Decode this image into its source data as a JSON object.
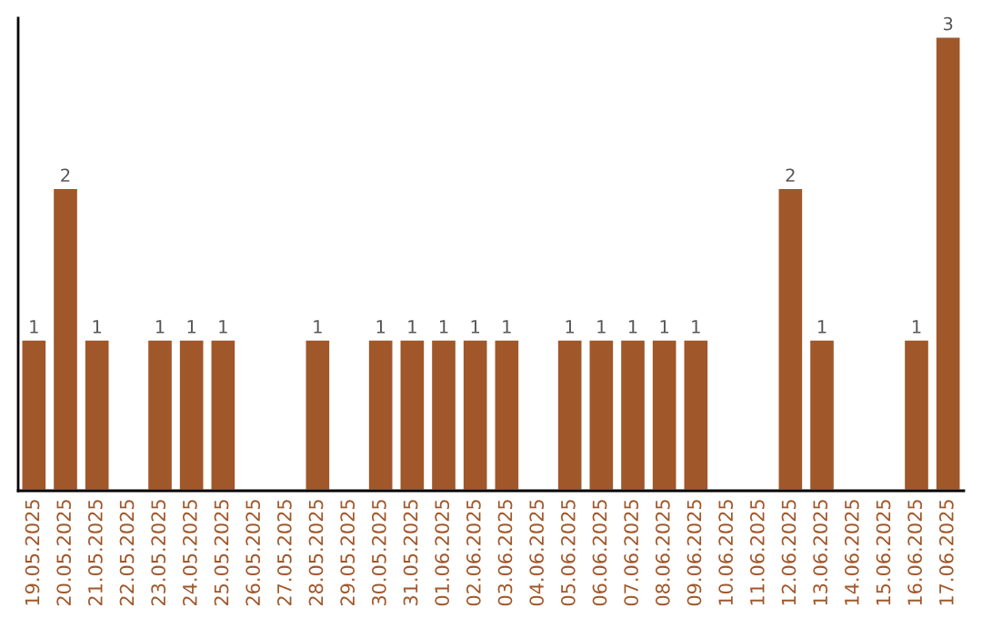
{
  "chart_data": {
    "type": "bar",
    "categories": [
      "19.05.2025",
      "20.05.2025",
      "21.05.2025",
      "22.05.2025",
      "23.05.2025",
      "24.05.2025",
      "25.05.2025",
      "26.05.2025",
      "27.05.2025",
      "28.05.2025",
      "29.05.2025",
      "30.05.2025",
      "31.05.2025",
      "01.06.2025",
      "02.06.2025",
      "03.06.2025",
      "04.06.2025",
      "05.06.2025",
      "06.06.2025",
      "07.06.2025",
      "08.06.2025",
      "09.06.2025",
      "10.06.2025",
      "11.06.2025",
      "12.06.2025",
      "13.06.2025",
      "14.06.2025",
      "15.06.2025",
      "16.06.2025",
      "17.06.2025"
    ],
    "values": [
      1,
      2,
      1,
      null,
      1,
      1,
      1,
      null,
      null,
      1,
      null,
      1,
      1,
      1,
      1,
      1,
      null,
      1,
      1,
      1,
      1,
      1,
      null,
      null,
      2,
      1,
      null,
      null,
      1,
      3
    ],
    "value_labels": [
      "1",
      "2",
      "1",
      null,
      "1",
      "1",
      "1",
      null,
      null,
      "1",
      null,
      "1",
      "1",
      "1",
      "1",
      "1",
      null,
      "1",
      "1",
      "1",
      "1",
      "1",
      null,
      null,
      "2",
      "1",
      null,
      null,
      "1",
      "3"
    ],
    "color": "#a0572a",
    "grid": false,
    "legend": false
  }
}
